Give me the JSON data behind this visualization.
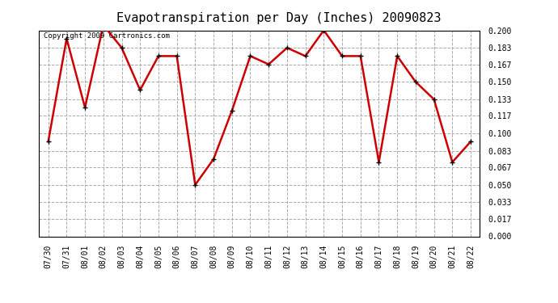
{
  "title": "Evapotranspiration per Day (Inches) 20090823",
  "copyright_text": "Copyright 2009 Cartronics.com",
  "x_labels": [
    "07/30",
    "07/31",
    "08/01",
    "08/02",
    "08/03",
    "08/04",
    "08/05",
    "08/06",
    "08/07",
    "08/08",
    "08/09",
    "08/10",
    "08/11",
    "08/12",
    "08/13",
    "08/14",
    "08/15",
    "08/16",
    "08/17",
    "08/18",
    "08/19",
    "08/20",
    "08/21",
    "08/22"
  ],
  "y_values": [
    0.092,
    0.192,
    0.125,
    0.205,
    0.183,
    0.142,
    0.175,
    0.175,
    0.05,
    0.075,
    0.122,
    0.175,
    0.167,
    0.183,
    0.175,
    0.2,
    0.175,
    0.175,
    0.072,
    0.175,
    0.15,
    0.133,
    0.072,
    0.092
  ],
  "y_ticks": [
    0.0,
    0.017,
    0.033,
    0.05,
    0.067,
    0.083,
    0.1,
    0.117,
    0.133,
    0.15,
    0.167,
    0.183,
    0.2
  ],
  "y_tick_labels": [
    "0.000",
    "0.017",
    "0.033",
    "0.050",
    "0.067",
    "0.083",
    "0.100",
    "0.117",
    "0.133",
    "0.150",
    "0.167",
    "0.183",
    "0.200"
  ],
  "ylim": [
    0.0,
    0.2
  ],
  "line_color": "#cc0000",
  "marker": "+",
  "marker_color": "#000000",
  "marker_size": 5,
  "line_width": 1.8,
  "grid_color": "#aaaaaa",
  "grid_linestyle": "--",
  "bg_color": "#ffffff",
  "plot_bg_color": "#ffffff",
  "title_fontsize": 11,
  "tick_fontsize": 7,
  "copyright_fontsize": 6.5
}
